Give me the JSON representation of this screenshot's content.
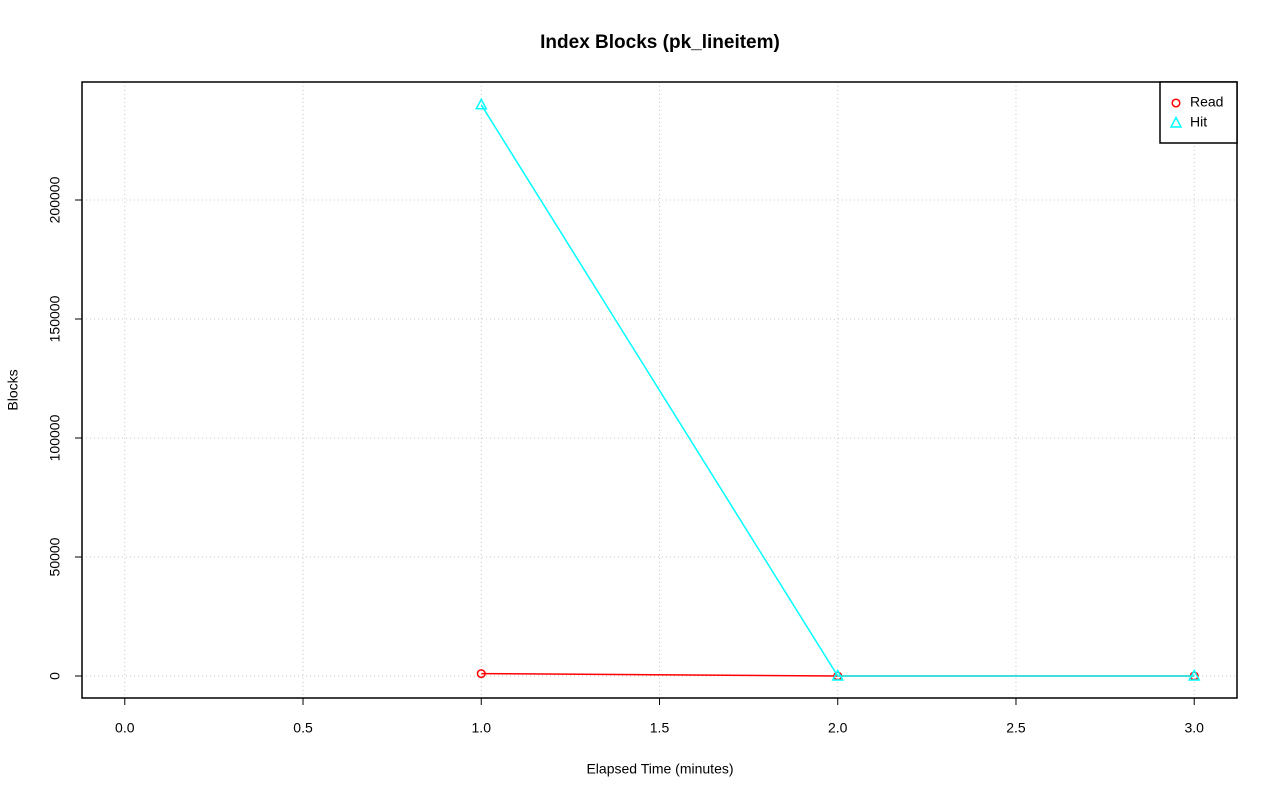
{
  "chart_data": {
    "type": "line",
    "title": "Index Blocks (pk_lineitem)",
    "x_label": "Elapsed Time (minutes)",
    "y_label": "Blocks",
    "x": [
      1.0,
      2.0,
      3.0
    ],
    "series": [
      {
        "name": "Read",
        "color": "#ff0000",
        "marker": "circle",
        "values": [
          1000,
          0,
          0
        ]
      },
      {
        "name": "Hit",
        "color": "#00ffff",
        "marker": "triangle",
        "values": [
          240000,
          0,
          0
        ]
      }
    ],
    "xlim": [
      -0.12,
      3.12
    ],
    "xticks": [
      {
        "value": 0,
        "label": "0.0"
      },
      {
        "value": 0.5,
        "label": "0.5"
      },
      {
        "value": 1,
        "label": "1.0"
      },
      {
        "value": 1.5,
        "label": "1.5"
      },
      {
        "value": 2,
        "label": "2.0"
      },
      {
        "value": 2.5,
        "label": "2.5"
      },
      {
        "value": 3,
        "label": "3.0"
      }
    ],
    "ylim": [
      -9244,
      249580
    ],
    "yticks": [
      0,
      50000,
      100000,
      150000,
      200000
    ],
    "grid": true,
    "legend": "topright"
  }
}
